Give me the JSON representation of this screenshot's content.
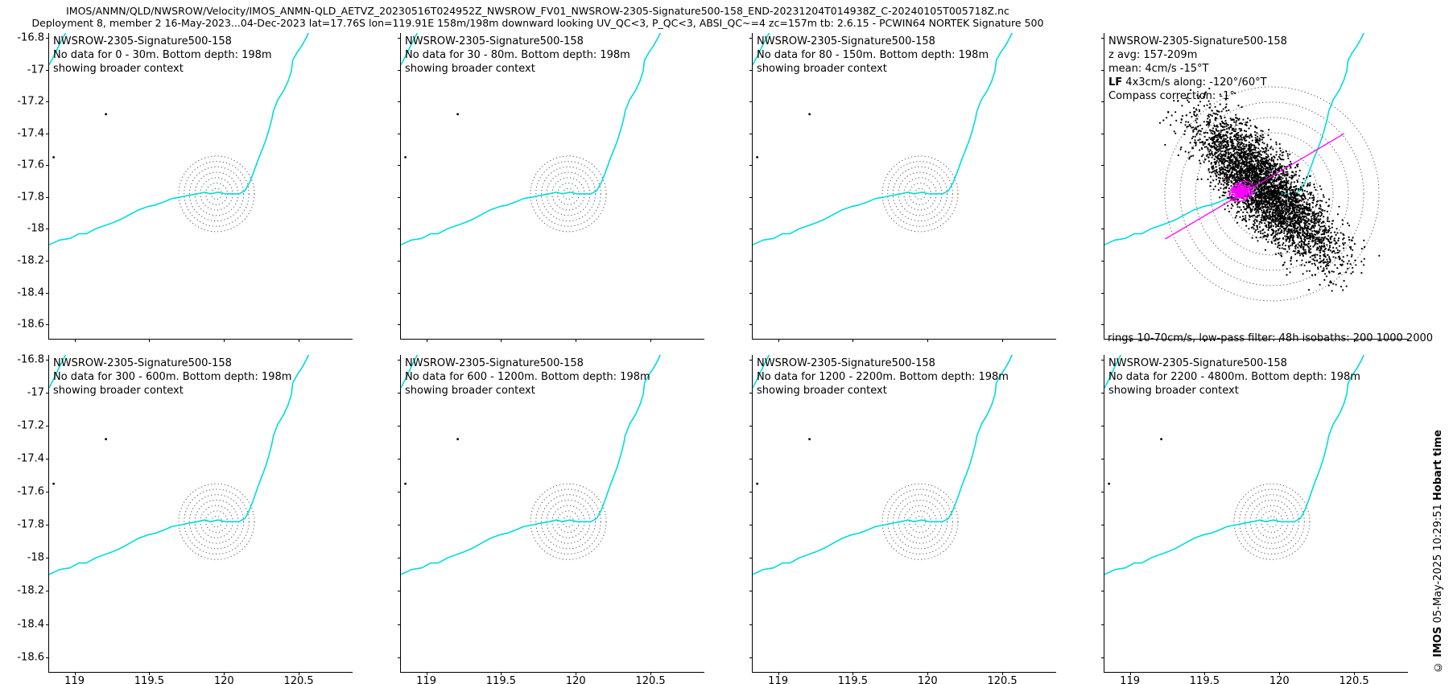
{
  "header": {
    "line1": "IMOS/ANMN/QLD/NWSROW/Velocity/IMOS_ANMN-QLD_AETVZ_20230516T024952Z_NWSROW_FV01_NWSROW-2305-Signature500-158_END-20231204T014938Z_C-20240105T005718Z.nc",
    "line2": "Deployment 8, member 2 16-May-2023...04-Dec-2023 lat=17.76S lon=119.91E 158m/198m downward looking UV_QC<3, P_QC<3, ABSI_QC~=4 zc=157m tb: 2.6.15 - PCWIN64 NORTEK Signature 500"
  },
  "watermark": {
    "prefix": "© ",
    "imos": "IMOS",
    "middle": " 05-May-2025 10:29:51 ",
    "suffix": "Hobart time"
  },
  "panels": [
    {
      "title": "NWSROW-2305-Signature500-158",
      "no_data": "No data for 0 - 30m. Bottom depth: 198m",
      "context": "showing broader context"
    },
    {
      "title": "NWSROW-2305-Signature500-158",
      "no_data": "No data for 30 - 80m. Bottom depth: 198m",
      "context": "showing broader context"
    },
    {
      "title": "NWSROW-2305-Signature500-158",
      "no_data": "No data for 80 - 150m. Bottom depth: 198m",
      "context": "showing broader context"
    },
    {
      "title": "NWSROW-2305-Signature500-158",
      "z_avg": "z avg: 157-209m",
      "mean": "mean: 4cm/s -15°T",
      "lf_label": "LF",
      "lf_rest": " 4x3cm/s along: -120°/60°T",
      "compass": "Compass correction: -1°",
      "footer": "rings 10-70cm/s, low-pass filter: 48h isobaths: 200 1000 2000"
    },
    {
      "title": "NWSROW-2305-Signature500-158",
      "no_data": "No data for 300 - 600m. Bottom depth: 198m",
      "context": "showing broader context"
    },
    {
      "title": "NWSROW-2305-Signature500-158",
      "no_data": "No data for 600 - 1200m. Bottom depth: 198m",
      "context": "showing broader context"
    },
    {
      "title": "NWSROW-2305-Signature500-158",
      "no_data": "No data for 1200 - 2200m. Bottom depth: 198m",
      "context": "showing broader context"
    },
    {
      "title": "NWSROW-2305-Signature500-158",
      "no_data": "No data for 2200 - 4800m. Bottom depth: 198m",
      "context": "showing broader context"
    }
  ],
  "colors": {
    "coastline": "#00dcdc",
    "rings": "#555555",
    "scatter": "#000000",
    "magenta": "#ff00ff"
  },
  "chart_data": [
    {
      "type": "map",
      "panel_count": 7,
      "depth_bins": [
        "0 - 30m",
        "30 - 80m",
        "80 - 150m",
        "300 - 600m",
        "600 - 1200m",
        "1200 - 2200m",
        "2200 - 4800m"
      ],
      "bottom_depth_m": 198,
      "mooring_lonlat": [
        119.91,
        -17.76
      ],
      "x_ticks": [
        119,
        119.5,
        120,
        120.5
      ],
      "y_ticks": [
        -16.8,
        -17,
        -17.2,
        -17.4,
        -17.6,
        -17.8,
        -18,
        -18.2,
        -18.4,
        -18.6
      ],
      "x_tick_labels": [
        "119",
        "119.5",
        "120",
        "120.5"
      ],
      "y_tick_labels": [
        "-16.8",
        "-17",
        "-17.2",
        "-17.4",
        "-17.6",
        "-17.8",
        "-18",
        "-18.2",
        "-18.4",
        "-18.6"
      ],
      "xlim": [
        118.83,
        120.86
      ],
      "ylim": [
        -18.69,
        -16.77
      ],
      "grid": false,
      "legend": false,
      "ring_center_lonlat": [
        119.95,
        -17.78
      ],
      "ring_count": 7,
      "markers_lonlat": [
        [
          119.21,
          -17.28
        ],
        [
          118.86,
          -17.55
        ]
      ],
      "coastline_lonlat": [
        [
          118.83,
          -18.1
        ],
        [
          118.9,
          -18.07
        ],
        [
          118.97,
          -18.06
        ],
        [
          119.03,
          -18.03
        ],
        [
          119.08,
          -18.03
        ],
        [
          119.14,
          -18.0
        ],
        [
          119.2,
          -17.98
        ],
        [
          119.26,
          -17.96
        ],
        [
          119.31,
          -17.94
        ],
        [
          119.37,
          -17.91
        ],
        [
          119.43,
          -17.88
        ],
        [
          119.49,
          -17.86
        ],
        [
          119.54,
          -17.85
        ],
        [
          119.6,
          -17.83
        ],
        [
          119.65,
          -17.81
        ],
        [
          119.71,
          -17.8
        ],
        [
          119.76,
          -17.79
        ],
        [
          119.82,
          -17.78
        ],
        [
          119.87,
          -17.77
        ],
        [
          119.91,
          -17.78
        ],
        [
          119.96,
          -17.77
        ],
        [
          120.01,
          -17.78
        ],
        [
          120.06,
          -17.78
        ],
        [
          120.1,
          -17.78
        ],
        [
          120.14,
          -17.76
        ],
        [
          120.17,
          -17.71
        ],
        [
          120.2,
          -17.64
        ],
        [
          120.23,
          -17.56
        ],
        [
          120.26,
          -17.49
        ],
        [
          120.28,
          -17.44
        ],
        [
          120.3,
          -17.38
        ],
        [
          120.32,
          -17.31
        ],
        [
          120.33,
          -17.26
        ],
        [
          120.36,
          -17.19
        ],
        [
          120.4,
          -17.13
        ],
        [
          120.43,
          -17.07
        ],
        [
          120.45,
          -17.01
        ],
        [
          120.46,
          -16.94
        ],
        [
          120.49,
          -16.89
        ],
        [
          120.52,
          -16.85
        ],
        [
          120.55,
          -16.8
        ],
        [
          120.57,
          -16.76
        ]
      ],
      "corner_segment_lonlat": [
        [
          118.83,
          -16.97
        ],
        [
          118.87,
          -16.9
        ],
        [
          118.9,
          -16.84
        ],
        [
          118.94,
          -16.77
        ]
      ]
    },
    {
      "type": "scatter",
      "description": "low-pass filtered velocity scatter, depth bin 150 - 300m",
      "z_avg_m": "157-209",
      "mean_speed": "4cm/s",
      "mean_direction_T": "-15°",
      "lf_ellipse_cm_s": "4x3",
      "lf_along_T": "-120°/60°",
      "compass_correction": "-1°",
      "rings_cm_s": [
        10,
        20,
        30,
        40,
        50,
        60,
        70
      ],
      "lowpass_filter_h": 48,
      "isobaths_m": [
        200,
        1000,
        2000
      ]
    }
  ]
}
